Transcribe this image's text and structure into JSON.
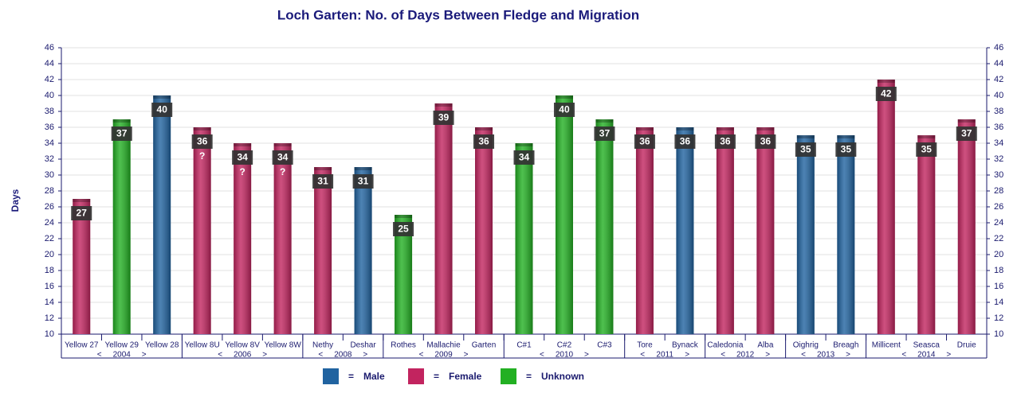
{
  "chart_data": {
    "type": "bar",
    "title": "Loch Garten: No. of Days Between Fledge and Migration",
    "y_label": "Days",
    "categories": [
      "Yellow 27",
      "Yellow 29",
      "Yellow 28",
      "Yellow 8U",
      "Yellow 8V",
      "Yellow 8W",
      "Nethy",
      "Deshar",
      "Rothes",
      "Mallachie",
      "Garten",
      "C#1",
      "C#2",
      "C#3",
      "Tore",
      "Bynack",
      "Caledonia",
      "Alba",
      "Oighrig",
      "Breagh",
      "Millicent",
      "Seasca",
      "Druie"
    ],
    "series": [
      {
        "name": "Male",
        "color": "#2063a0",
        "values": [
          null,
          null,
          40,
          null,
          null,
          null,
          null,
          31,
          null,
          null,
          null,
          null,
          null,
          null,
          null,
          36,
          null,
          null,
          35,
          35,
          null,
          null,
          null
        ]
      },
      {
        "name": "Female",
        "color": "#c2245f",
        "values": [
          27,
          null,
          null,
          36,
          34,
          34,
          31,
          null,
          null,
          39,
          36,
          null,
          null,
          null,
          36,
          null,
          36,
          36,
          null,
          null,
          42,
          35,
          37
        ]
      },
      {
        "name": "Unknown",
        "color": "#22b022",
        "values": [
          null,
          37,
          null,
          null,
          null,
          null,
          null,
          null,
          25,
          null,
          null,
          34,
          40,
          37,
          null,
          null,
          null,
          null,
          null,
          null,
          null,
          null,
          null
        ]
      }
    ],
    "value_notes": [
      null,
      null,
      null,
      "?",
      "?",
      "?",
      null,
      null,
      null,
      null,
      null,
      null,
      null,
      null,
      null,
      null,
      null,
      null,
      null,
      null,
      null,
      null,
      null
    ],
    "year_groups": [
      {
        "label": "2004",
        "start": 0,
        "end": 2
      },
      {
        "label": "2006",
        "start": 3,
        "end": 5
      },
      {
        "label": "2008",
        "start": 6,
        "end": 7
      },
      {
        "label": "2009",
        "start": 8,
        "end": 10
      },
      {
        "label": "2010",
        "start": 11,
        "end": 13
      },
      {
        "label": "2011",
        "start": 14,
        "end": 15
      },
      {
        "label": "2012",
        "start": 16,
        "end": 17
      },
      {
        "label": "2013",
        "start": 18,
        "end": 19
      },
      {
        "label": "2014",
        "start": 20,
        "end": 22
      }
    ],
    "group_left": "<",
    "group_right": ">",
    "legend_separator": "=",
    "ylim": [
      10,
      46
    ],
    "yticks": [
      10,
      12,
      14,
      16,
      18,
      20,
      22,
      24,
      26,
      28,
      30,
      32,
      34,
      36,
      38,
      40,
      42,
      44,
      46
    ],
    "grid": true
  }
}
